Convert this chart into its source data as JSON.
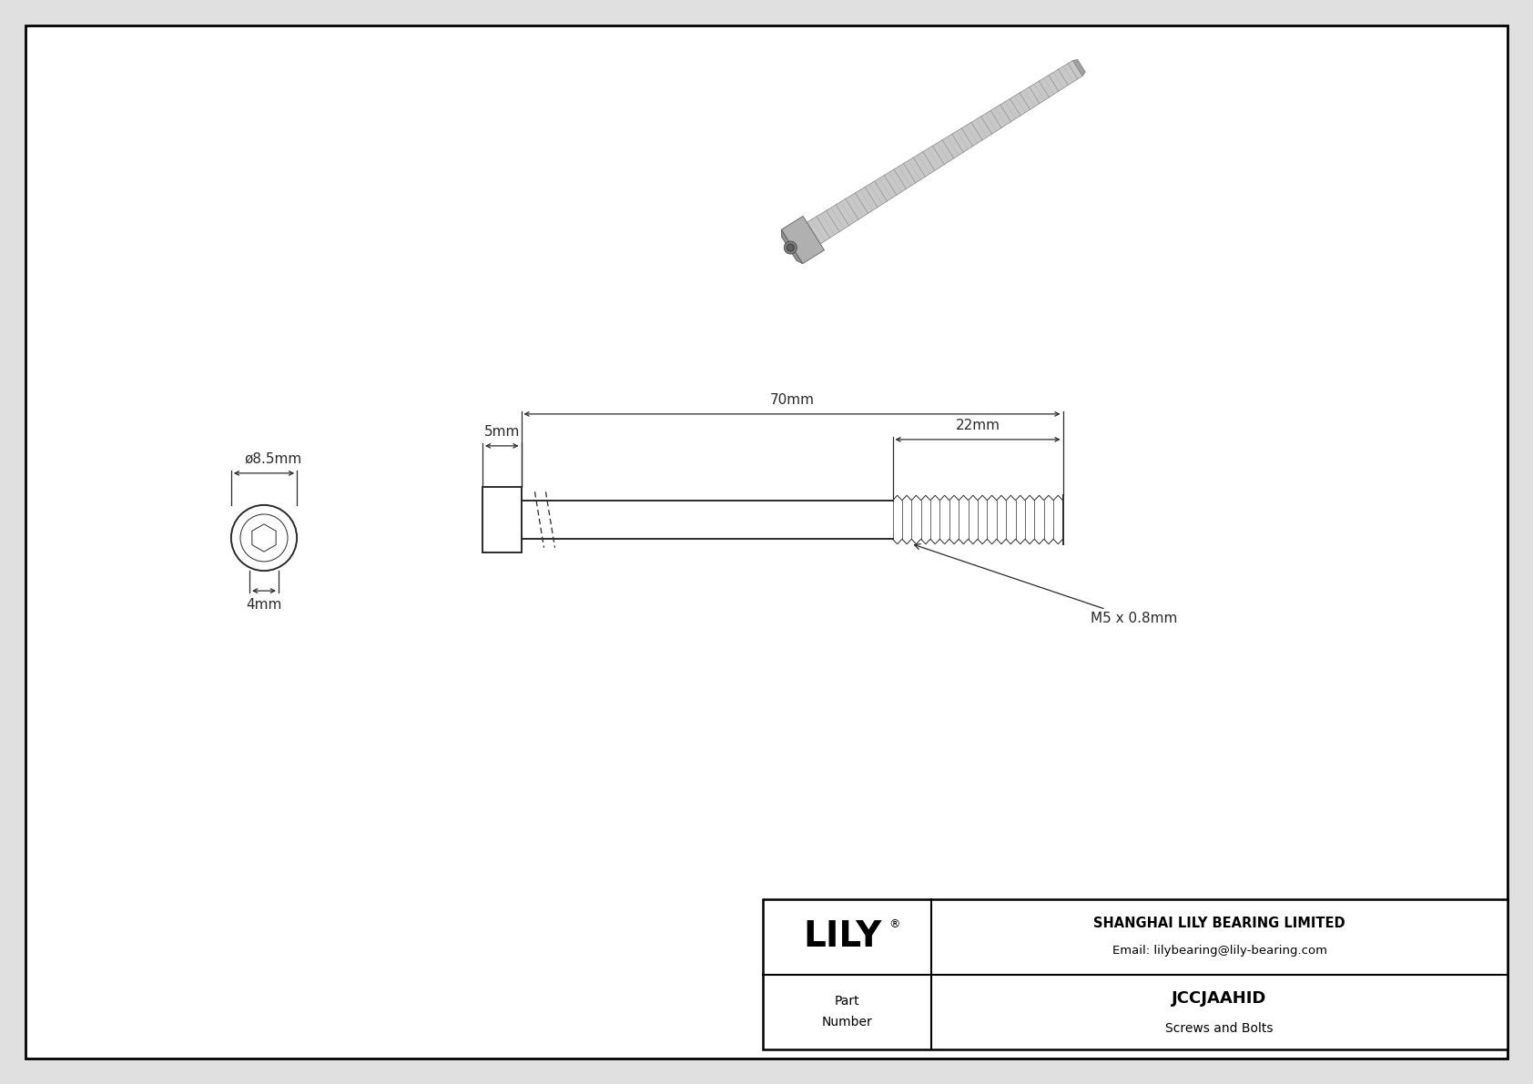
{
  "bg_color": "#e0e0e0",
  "drawing_bg": "#ffffff",
  "border_color": "#000000",
  "line_color": "#2a2a2a",
  "dim_color": "#2a2a2a",
  "title": "JCCJAAHID",
  "subtitle": "Screws and Bolts",
  "company": "SHANGHAI LILY BEARING LIMITED",
  "email": "Email: lilybearing@lily-bearing.com",
  "part_label": "Part\nNumber",
  "dim_diameter": "ø8.5mm",
  "dim_head_height": "4mm",
  "dim_head_length": "5mm",
  "dim_total_length": "70mm",
  "dim_thread_length": "22mm",
  "dim_thread_spec": "M5 x 0.8mm",
  "lily_logo": "LILY",
  "logo_reg": "®"
}
